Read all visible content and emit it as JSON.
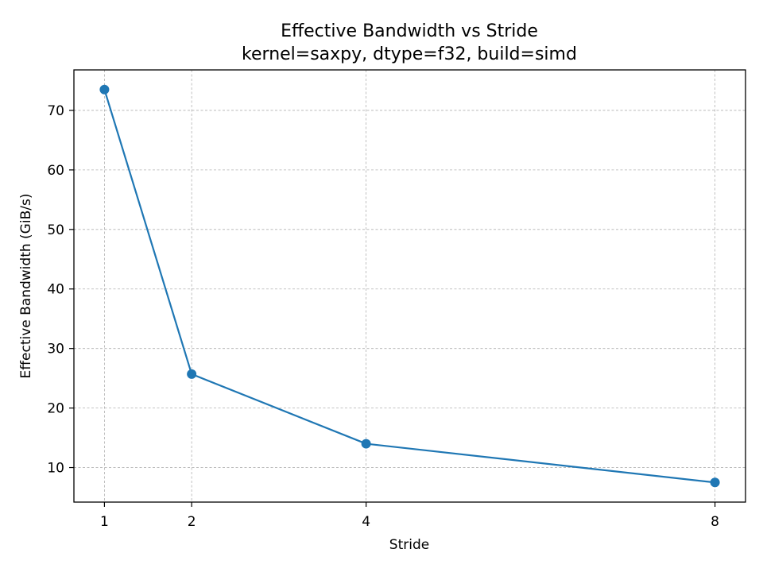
{
  "chart_data": {
    "type": "line",
    "title": "Effective Bandwidth vs Stride",
    "subtitle": "kernel=saxpy, dtype=f32, build=simd",
    "xlabel": "Stride",
    "ylabel": "Effective Bandwidth (GiB/s)",
    "x": [
      1,
      2,
      4,
      8
    ],
    "series": [
      {
        "values": [
          73.5,
          25.7,
          14.0,
          7.5
        ],
        "color": "#1f77b4",
        "marker": "circle"
      }
    ],
    "xticks": [
      1,
      2,
      4,
      8
    ],
    "yticks": [
      10,
      20,
      30,
      40,
      50,
      60,
      70
    ],
    "xlim": [
      0.65,
      8.35
    ],
    "ylim": [
      4.2,
      76.8
    ],
    "grid": true,
    "legend": "none"
  }
}
